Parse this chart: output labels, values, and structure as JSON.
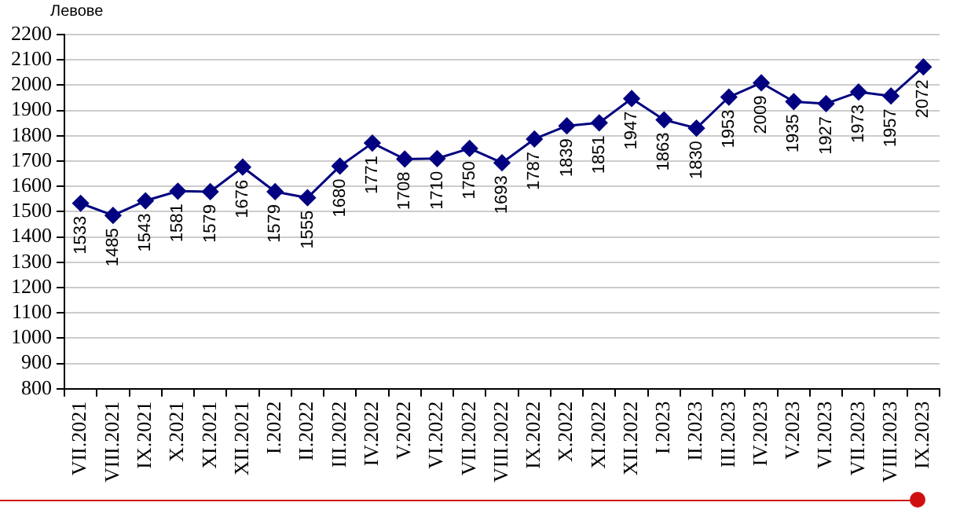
{
  "chart_data": {
    "type": "line",
    "ylabel": "Левове",
    "categories": [
      "VII.2021",
      "VIII.2021",
      "IX.2021",
      "X.2021",
      "XI.2021",
      "XII.2021",
      "I.2022",
      "II.2022",
      "III.2022",
      "IV.2022",
      "V.2022",
      "VI.2022",
      "VII.2022",
      "VIII.2022",
      "IX.2022",
      "X.2022",
      "XI.2022",
      "XII.2022",
      "I.2023",
      "II.2023",
      "III.2023",
      "IV.2023",
      "V.2023",
      "VI.2023",
      "VII.2023",
      "VIII.2023",
      "IX.2023"
    ],
    "series": [
      {
        "color": "#000080",
        "values": [
          1533,
          1485,
          1543,
          1581,
          1579,
          1676,
          1579,
          1555,
          1680,
          1771,
          1708,
          1710,
          1750,
          1693,
          1787,
          1839,
          1851,
          1947,
          1863,
          1830,
          1953,
          2009,
          1935,
          1927,
          1973,
          1957,
          2072
        ]
      }
    ],
    "ylim": [
      800,
      2200
    ],
    "yticks": [
      800,
      900,
      1000,
      1100,
      1200,
      1300,
      1400,
      1500,
      1600,
      1700,
      1800,
      1900,
      2000,
      2100,
      2200
    ],
    "grid": "y",
    "legend": false,
    "marker": "diamond",
    "line_style": "solid",
    "data_labels": true
  }
}
